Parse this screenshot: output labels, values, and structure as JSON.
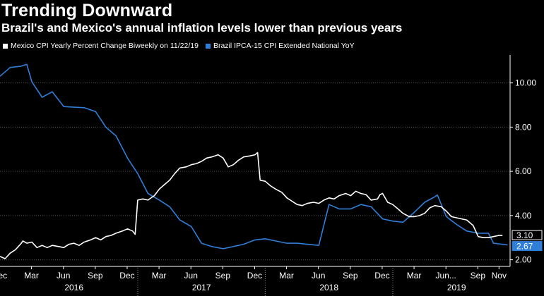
{
  "chart_data": {
    "type": "line",
    "title": "Trending Downward",
    "subtitle": "Brazil's and Mexico's annual inflation levels lower than previous years",
    "ylim": [
      1.7,
      11.2
    ],
    "yticks": [
      2.0,
      4.0,
      6.0,
      8.0,
      10.0
    ],
    "ytick_labels": [
      "2.00",
      "4.00",
      "6.00",
      "8.00",
      "10.00"
    ],
    "x_domain": [
      2015.92,
      2019.92
    ],
    "xticks": [
      {
        "label": "Dec",
        "t": 2015.917
      },
      {
        "label": "Mar",
        "t": 2016.167
      },
      {
        "label": "Jun",
        "t": 2016.417
      },
      {
        "label": "Sep",
        "t": 2016.667
      },
      {
        "label": "Dec",
        "t": 2016.917
      },
      {
        "label": "Mar",
        "t": 2017.167
      },
      {
        "label": "Jun",
        "t": 2017.417
      },
      {
        "label": "Sep",
        "t": 2017.667
      },
      {
        "label": "Dec",
        "t": 2017.917
      },
      {
        "label": "Mar",
        "t": 2018.167
      },
      {
        "label": "Jun",
        "t": 2018.417
      },
      {
        "label": "Sep",
        "t": 2018.667
      },
      {
        "label": "Dec",
        "t": 2018.917
      },
      {
        "label": "Mar",
        "t": 2019.167
      },
      {
        "label": "Jun...",
        "t": 2019.417
      },
      {
        "label": "Sep",
        "t": 2019.667
      },
      {
        "label": "Nov",
        "t": 2019.833
      }
    ],
    "years": [
      {
        "label": "2016",
        "t": 2016.5
      },
      {
        "label": "2017",
        "t": 2017.5
      },
      {
        "label": "2018",
        "t": 2018.5
      },
      {
        "label": "2019",
        "t": 2019.5
      }
    ],
    "year_boundaries": [
      2017.0,
      2018.0,
      2019.0
    ],
    "series": [
      {
        "name": "Mexico CPI Yearly Percent Change Biweekly  on 11/22/19",
        "color": "#ffffff",
        "last_label": "3.10",
        "points": [
          [
            2015.92,
            2.15
          ],
          [
            2015.96,
            2.05
          ],
          [
            2016.0,
            2.3
          ],
          [
            2016.04,
            2.45
          ],
          [
            2016.08,
            2.7
          ],
          [
            2016.1,
            2.85
          ],
          [
            2016.13,
            2.75
          ],
          [
            2016.17,
            2.8
          ],
          [
            2016.21,
            2.55
          ],
          [
            2016.25,
            2.65
          ],
          [
            2016.29,
            2.55
          ],
          [
            2016.33,
            2.65
          ],
          [
            2016.38,
            2.6
          ],
          [
            2016.42,
            2.55
          ],
          [
            2016.46,
            2.7
          ],
          [
            2016.5,
            2.75
          ],
          [
            2016.54,
            2.65
          ],
          [
            2016.58,
            2.8
          ],
          [
            2016.63,
            2.9
          ],
          [
            2016.67,
            3.0
          ],
          [
            2016.71,
            2.9
          ],
          [
            2016.75,
            3.05
          ],
          [
            2016.79,
            3.1
          ],
          [
            2016.83,
            3.2
          ],
          [
            2016.88,
            3.3
          ],
          [
            2016.92,
            3.4
          ],
          [
            2016.96,
            3.3
          ],
          [
            2016.98,
            3.15
          ],
          [
            2017.0,
            4.7
          ],
          [
            2017.04,
            4.75
          ],
          [
            2017.08,
            4.7
          ],
          [
            2017.13,
            4.9
          ],
          [
            2017.17,
            5.2
          ],
          [
            2017.21,
            5.4
          ],
          [
            2017.25,
            5.6
          ],
          [
            2017.29,
            5.9
          ],
          [
            2017.33,
            6.15
          ],
          [
            2017.38,
            6.2
          ],
          [
            2017.42,
            6.3
          ],
          [
            2017.46,
            6.35
          ],
          [
            2017.5,
            6.45
          ],
          [
            2017.54,
            6.6
          ],
          [
            2017.58,
            6.65
          ],
          [
            2017.63,
            6.75
          ],
          [
            2017.67,
            6.6
          ],
          [
            2017.71,
            6.2
          ],
          [
            2017.75,
            6.3
          ],
          [
            2017.79,
            6.5
          ],
          [
            2017.83,
            6.65
          ],
          [
            2017.88,
            6.7
          ],
          [
            2017.92,
            6.75
          ],
          [
            2017.94,
            6.85
          ],
          [
            2017.96,
            5.6
          ],
          [
            2018.0,
            5.55
          ],
          [
            2018.04,
            5.35
          ],
          [
            2018.08,
            5.2
          ],
          [
            2018.13,
            5.05
          ],
          [
            2018.17,
            4.8
          ],
          [
            2018.21,
            4.65
          ],
          [
            2018.25,
            4.5
          ],
          [
            2018.29,
            4.45
          ],
          [
            2018.33,
            4.55
          ],
          [
            2018.38,
            4.6
          ],
          [
            2018.42,
            4.55
          ],
          [
            2018.46,
            4.7
          ],
          [
            2018.5,
            4.8
          ],
          [
            2018.54,
            4.75
          ],
          [
            2018.58,
            4.9
          ],
          [
            2018.63,
            5.0
          ],
          [
            2018.67,
            4.9
          ],
          [
            2018.71,
            5.1
          ],
          [
            2018.75,
            5.0
          ],
          [
            2018.79,
            4.95
          ],
          [
            2018.83,
            4.7
          ],
          [
            2018.88,
            4.75
          ],
          [
            2018.9,
            4.95
          ],
          [
            2018.92,
            5.0
          ],
          [
            2018.96,
            4.6
          ],
          [
            2019.0,
            4.5
          ],
          [
            2019.04,
            4.3
          ],
          [
            2019.08,
            4.1
          ],
          [
            2019.13,
            3.95
          ],
          [
            2019.17,
            3.95
          ],
          [
            2019.21,
            4.0
          ],
          [
            2019.25,
            4.1
          ],
          [
            2019.29,
            4.35
          ],
          [
            2019.33,
            4.45
          ],
          [
            2019.38,
            4.4
          ],
          [
            2019.42,
            4.2
          ],
          [
            2019.46,
            3.95
          ],
          [
            2019.5,
            3.9
          ],
          [
            2019.54,
            3.85
          ],
          [
            2019.58,
            3.8
          ],
          [
            2019.63,
            3.55
          ],
          [
            2019.67,
            3.05
          ],
          [
            2019.71,
            3.0
          ],
          [
            2019.75,
            3.0
          ],
          [
            2019.79,
            3.05
          ],
          [
            2019.83,
            3.1
          ],
          [
            2019.86,
            3.1
          ]
        ]
      },
      {
        "name": "Brazil IPCA-15 CPI Extended National YoY",
        "color": "#2f7ed8",
        "last_label": "2.67",
        "points": [
          [
            2015.92,
            10.3
          ],
          [
            2016.0,
            10.7
          ],
          [
            2016.08,
            10.75
          ],
          [
            2016.13,
            10.84
          ],
          [
            2016.17,
            10.05
          ],
          [
            2016.25,
            9.35
          ],
          [
            2016.33,
            9.6
          ],
          [
            2016.42,
            8.93
          ],
          [
            2016.5,
            8.9
          ],
          [
            2016.58,
            8.88
          ],
          [
            2016.67,
            8.7
          ],
          [
            2016.75,
            8.0
          ],
          [
            2016.83,
            7.6
          ],
          [
            2016.92,
            6.6
          ],
          [
            2017.0,
            5.9
          ],
          [
            2017.08,
            5.0
          ],
          [
            2017.17,
            4.7
          ],
          [
            2017.25,
            4.4
          ],
          [
            2017.33,
            3.8
          ],
          [
            2017.42,
            3.5
          ],
          [
            2017.5,
            2.75
          ],
          [
            2017.58,
            2.6
          ],
          [
            2017.67,
            2.5
          ],
          [
            2017.75,
            2.6
          ],
          [
            2017.83,
            2.7
          ],
          [
            2017.92,
            2.9
          ],
          [
            2018.0,
            2.95
          ],
          [
            2018.08,
            2.85
          ],
          [
            2018.17,
            2.75
          ],
          [
            2018.25,
            2.75
          ],
          [
            2018.33,
            2.7
          ],
          [
            2018.42,
            2.65
          ],
          [
            2018.5,
            4.5
          ],
          [
            2018.58,
            4.3
          ],
          [
            2018.67,
            4.3
          ],
          [
            2018.75,
            4.5
          ],
          [
            2018.83,
            4.4
          ],
          [
            2018.92,
            3.85
          ],
          [
            2019.0,
            3.75
          ],
          [
            2019.08,
            3.7
          ],
          [
            2019.17,
            4.15
          ],
          [
            2019.25,
            4.6
          ],
          [
            2019.33,
            4.85
          ],
          [
            2019.35,
            4.93
          ],
          [
            2019.42,
            3.95
          ],
          [
            2019.5,
            3.6
          ],
          [
            2019.58,
            3.3
          ],
          [
            2019.67,
            3.2
          ],
          [
            2019.75,
            3.2
          ],
          [
            2019.79,
            2.75
          ],
          [
            2019.83,
            2.72
          ],
          [
            2019.9,
            2.67
          ]
        ]
      }
    ]
  }
}
